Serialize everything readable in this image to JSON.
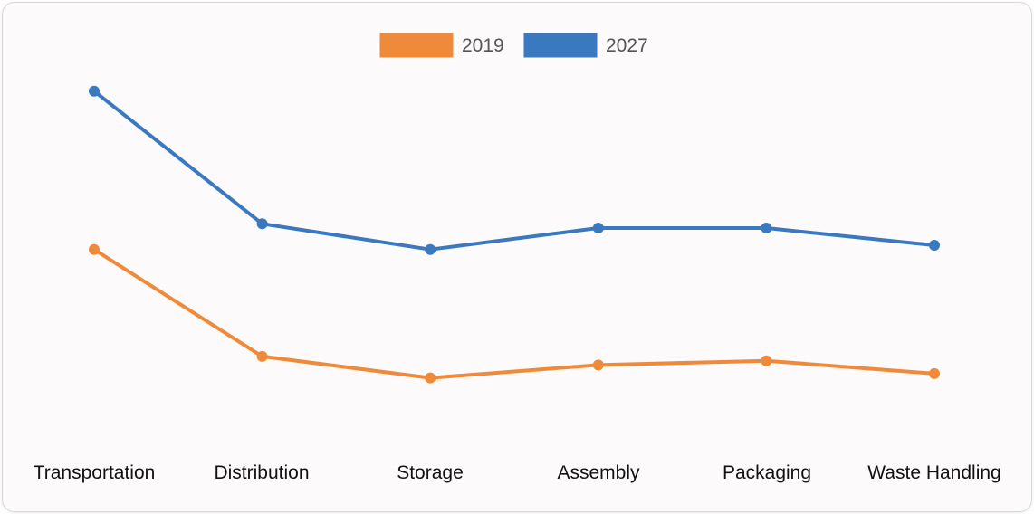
{
  "chart_data": {
    "type": "line",
    "title": "",
    "xlabel": "",
    "ylabel": "",
    "categories": [
      "Transportation",
      "Distribution",
      "Storage",
      "Assembly",
      "Packaging",
      "Waste Handling"
    ],
    "series": [
      {
        "name": "2019",
        "color": "#ef8a3b",
        "values": [
          47,
          22,
          17,
          20,
          21,
          18
        ]
      },
      {
        "name": "2027",
        "color": "#3a78c0",
        "values": [
          84,
          53,
          47,
          52,
          52,
          48
        ]
      }
    ],
    "ylim": [
      0,
      100
    ],
    "grid": false,
    "legend": "top-center"
  }
}
